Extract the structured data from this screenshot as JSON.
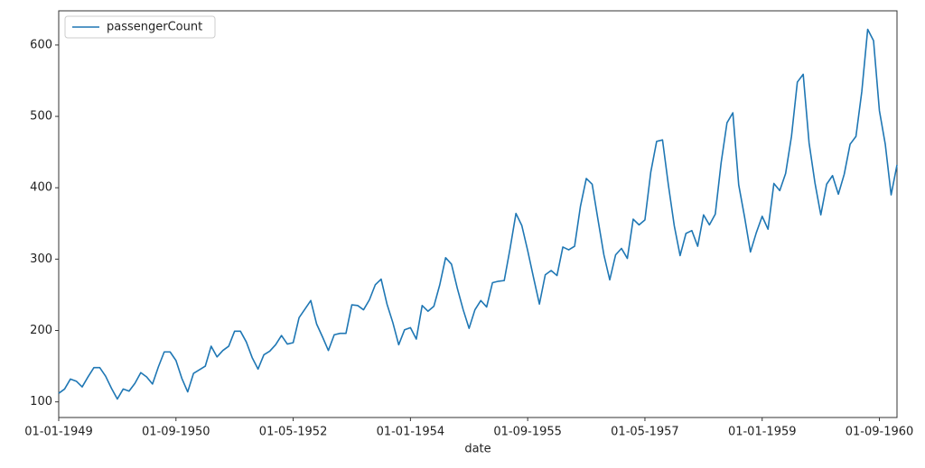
{
  "chart_data": {
    "type": "line",
    "xlabel": "date",
    "x": [
      "01-01-1949",
      "01-02-1949",
      "01-03-1949",
      "01-04-1949",
      "01-05-1949",
      "01-06-1949",
      "01-07-1949",
      "01-08-1949",
      "01-09-1949",
      "01-10-1949",
      "01-11-1949",
      "01-12-1949",
      "01-01-1950",
      "01-02-1950",
      "01-03-1950",
      "01-04-1950",
      "01-05-1950",
      "01-06-1950",
      "01-07-1950",
      "01-08-1950",
      "01-09-1950",
      "01-10-1950",
      "01-11-1950",
      "01-12-1950",
      "01-01-1951",
      "01-02-1951",
      "01-03-1951",
      "01-04-1951",
      "01-05-1951",
      "01-06-1951",
      "01-07-1951",
      "01-08-1951",
      "01-09-1951",
      "01-10-1951",
      "01-11-1951",
      "01-12-1951",
      "01-01-1952",
      "01-02-1952",
      "01-03-1952",
      "01-04-1952",
      "01-05-1952",
      "01-06-1952",
      "01-07-1952",
      "01-08-1952",
      "01-09-1952",
      "01-10-1952",
      "01-11-1952",
      "01-12-1952",
      "01-01-1953",
      "01-02-1953",
      "01-03-1953",
      "01-04-1953",
      "01-05-1953",
      "01-06-1953",
      "01-07-1953",
      "01-08-1953",
      "01-09-1953",
      "01-10-1953",
      "01-11-1953",
      "01-12-1953",
      "01-01-1954",
      "01-02-1954",
      "01-03-1954",
      "01-04-1954",
      "01-05-1954",
      "01-06-1954",
      "01-07-1954",
      "01-08-1954",
      "01-09-1954",
      "01-10-1954",
      "01-11-1954",
      "01-12-1954",
      "01-01-1955",
      "01-02-1955",
      "01-03-1955",
      "01-04-1955",
      "01-05-1955",
      "01-06-1955",
      "01-07-1955",
      "01-08-1955",
      "01-09-1955",
      "01-10-1955",
      "01-11-1955",
      "01-12-1955",
      "01-01-1956",
      "01-02-1956",
      "01-03-1956",
      "01-04-1956",
      "01-05-1956",
      "01-06-1956",
      "01-07-1956",
      "01-08-1956",
      "01-09-1956",
      "01-10-1956",
      "01-11-1956",
      "01-12-1956",
      "01-01-1957",
      "01-02-1957",
      "01-03-1957",
      "01-04-1957",
      "01-05-1957",
      "01-06-1957",
      "01-07-1957",
      "01-08-1957",
      "01-09-1957",
      "01-10-1957",
      "01-11-1957",
      "01-12-1957",
      "01-01-1958",
      "01-02-1958",
      "01-03-1958",
      "01-04-1958",
      "01-05-1958",
      "01-06-1958",
      "01-07-1958",
      "01-08-1958",
      "01-09-1958",
      "01-10-1958",
      "01-11-1958",
      "01-12-1958",
      "01-01-1959",
      "01-02-1959",
      "01-03-1959",
      "01-04-1959",
      "01-05-1959",
      "01-06-1959",
      "01-07-1959",
      "01-08-1959",
      "01-09-1959",
      "01-10-1959",
      "01-11-1959",
      "01-12-1959",
      "01-01-1960",
      "01-02-1960",
      "01-03-1960",
      "01-04-1960",
      "01-05-1960",
      "01-06-1960",
      "01-07-1960",
      "01-08-1960",
      "01-09-1960",
      "01-10-1960",
      "01-11-1960",
      "01-12-1960"
    ],
    "series": [
      {
        "name": "passengerCount",
        "color": "#1f77b4",
        "values": [
          112,
          118,
          132,
          129,
          121,
          135,
          148,
          148,
          136,
          119,
          104,
          118,
          115,
          126,
          141,
          135,
          125,
          149,
          170,
          170,
          158,
          133,
          114,
          140,
          145,
          150,
          178,
          163,
          172,
          178,
          199,
          199,
          184,
          162,
          146,
          166,
          171,
          180,
          193,
          181,
          183,
          218,
          230,
          242,
          209,
          191,
          172,
          194,
          196,
          196,
          236,
          235,
          229,
          243,
          264,
          272,
          237,
          211,
          180,
          201,
          204,
          188,
          235,
          227,
          234,
          264,
          302,
          293,
          259,
          229,
          203,
          229,
          242,
          233,
          267,
          269,
          270,
          315,
          364,
          347,
          312,
          274,
          237,
          278,
          284,
          277,
          317,
          313,
          318,
          374,
          413,
          405,
          355,
          306,
          271,
          306,
          315,
          301,
          356,
          348,
          355,
          422,
          465,
          467,
          404,
          347,
          305,
          336,
          340,
          318,
          362,
          348,
          363,
          435,
          491,
          505,
          404,
          359,
          310,
          337,
          360,
          342,
          406,
          396,
          420,
          472,
          548,
          559,
          463,
          407,
          362,
          405,
          417,
          391,
          419,
          461,
          472,
          535,
          622,
          606,
          508,
          461,
          390,
          432
        ]
      }
    ],
    "xticks": [
      "01-01-1949",
      "01-09-1950",
      "01-05-1952",
      "01-01-1954",
      "01-09-1955",
      "01-05-1957",
      "01-01-1959",
      "01-09-1960"
    ],
    "ylim": [
      78.1,
      647.9
    ],
    "yticks": [
      100,
      200,
      300,
      400,
      500,
      600
    ],
    "legend": "upper left"
  }
}
